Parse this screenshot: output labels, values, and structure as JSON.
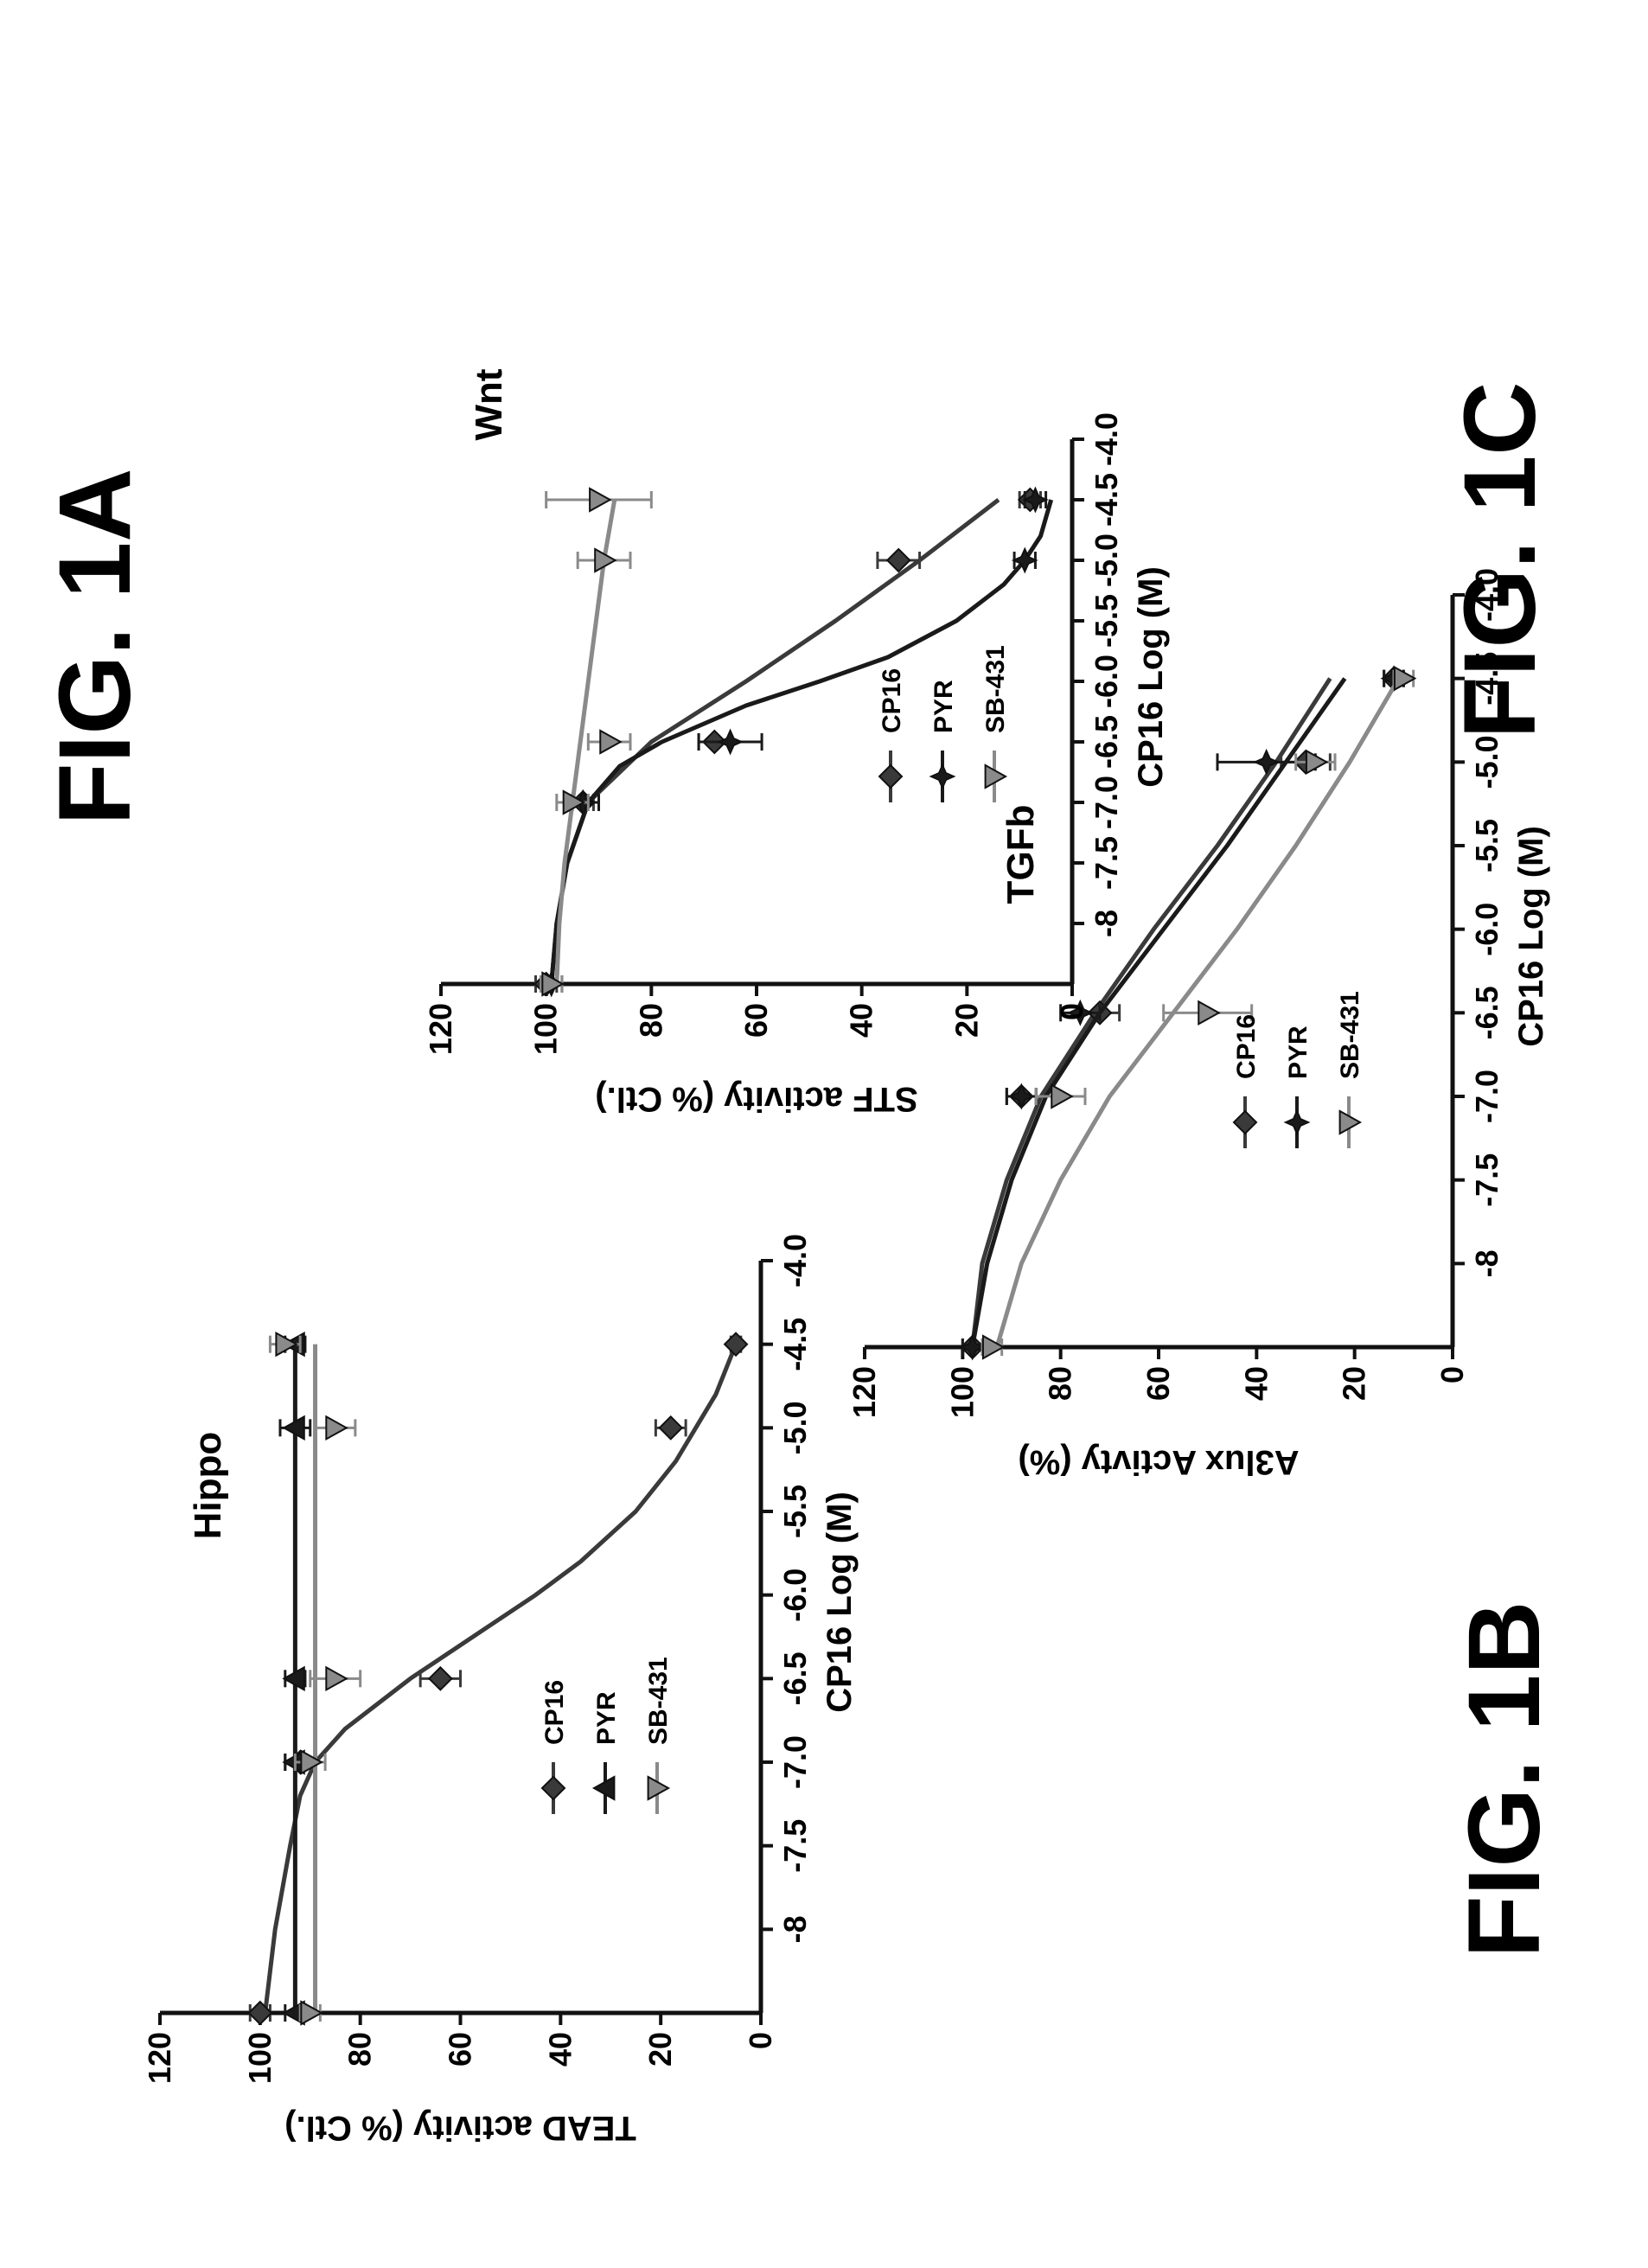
{
  "figures": [
    {
      "label": "FIG. 1A"
    },
    {
      "label": "FIG. 1B"
    },
    {
      "label": "FIG. 1C"
    }
  ],
  "chart_data": [
    {
      "id": "fig1a",
      "type": "line",
      "title": "Hippo",
      "xlabel": "CP16 Log (M)",
      "ylabel": "TEAD activity (% Ctl.)",
      "xlim": [
        -8.5,
        -4.0
      ],
      "ylim": [
        0,
        120
      ],
      "x_ticks": [
        "-8",
        "-7.5",
        "-7.0",
        "-6.5",
        "-6.0",
        "-5.5",
        "-5.0",
        "-4.5",
        "-4.0"
      ],
      "y_ticks": [
        "0",
        "20",
        "40",
        "60",
        "80",
        "100",
        "120"
      ],
      "legend_position": "lower-left",
      "series": [
        {
          "name": "CP16",
          "marker": "diamond",
          "x": [
            -8.5,
            -7.0,
            -6.5,
            -5.0,
            -4.5
          ],
          "y": [
            100,
            92,
            64,
            18,
            5
          ],
          "err": [
            2,
            3,
            4,
            3,
            1
          ],
          "curve_x": [
            -8.5,
            -8.0,
            -7.5,
            -7.2,
            -7.0,
            -6.8,
            -6.5,
            -6.2,
            -6.0,
            -5.8,
            -5.5,
            -5.2,
            -5.0,
            -4.8,
            -4.5
          ],
          "curve_y": [
            99,
            97,
            94,
            92,
            89,
            83,
            70,
            55,
            45,
            36,
            25,
            17,
            13,
            9,
            5
          ]
        },
        {
          "name": "PYR",
          "marker": "triangle",
          "x": [
            -8.5,
            -7.0,
            -6.5,
            -5.0,
            -4.5
          ],
          "y": [
            93,
            93,
            93,
            93,
            93
          ],
          "err": [
            2,
            2,
            2,
            3,
            2
          ],
          "curve_x": [
            -8.5,
            -4.5
          ],
          "curve_y": [
            93,
            93
          ]
        },
        {
          "name": "SB-431",
          "marker": "triangle-down",
          "x": [
            -8.5,
            -7.0,
            -6.5,
            -5.0,
            -4.5
          ],
          "y": [
            90,
            90,
            85,
            85,
            95
          ],
          "err": [
            2,
            3,
            5,
            4,
            3
          ],
          "curve_x": [
            -8.5,
            -4.5
          ],
          "curve_y": [
            89,
            89
          ]
        }
      ]
    },
    {
      "id": "fig1b",
      "type": "line",
      "title": "TGFb",
      "xlabel": "CP16 Log (M)",
      "ylabel": "A3lux Activty (%)",
      "xlim": [
        -8.5,
        -4.0
      ],
      "ylim": [
        0,
        120
      ],
      "x_ticks": [
        "-8",
        "-7.5",
        "-7.0",
        "-6.5",
        "-6.0",
        "-5.5",
        "-5.0",
        "-4.5",
        "-4.0"
      ],
      "y_ticks": [
        "0",
        "20",
        "40",
        "60",
        "80",
        "100",
        "120"
      ],
      "legend_position": "lower-left",
      "series": [
        {
          "name": "CP16",
          "marker": "diamond",
          "x": [
            -8.5,
            -7.0,
            -6.5,
            -5.0,
            -4.5
          ],
          "y": [
            98,
            88,
            72,
            30,
            12
          ],
          "err": [
            2,
            3,
            4,
            5,
            2
          ],
          "curve_x": [
            -8.5,
            -8.0,
            -7.5,
            -7.0,
            -6.5,
            -6.0,
            -5.5,
            -5.0,
            -4.5
          ],
          "curve_y": [
            98,
            96,
            91,
            84,
            73,
            61,
            48,
            36,
            25
          ]
        },
        {
          "name": "PYR",
          "marker": "star",
          "x": [
            -8.5,
            -7.0,
            -6.5,
            -5.0,
            -4.5
          ],
          "y": [
            98,
            88,
            76,
            38,
            12
          ],
          "err": [
            2,
            3,
            4,
            10,
            2
          ],
          "curve_x": [
            -8.5,
            -8.0,
            -7.5,
            -7.0,
            -6.5,
            -6.0,
            -5.5,
            -5.0,
            -4.5
          ],
          "curve_y": [
            98,
            95,
            90,
            83,
            72,
            59,
            46,
            34,
            22
          ]
        },
        {
          "name": "SB-431",
          "marker": "triangle-down",
          "x": [
            -8.5,
            -7.0,
            -6.5,
            -5.0,
            -4.5
          ],
          "y": [
            94,
            80,
            50,
            28,
            10
          ],
          "err": [
            2,
            5,
            9,
            4,
            2
          ],
          "curve_x": [
            -8.5,
            -8.0,
            -7.5,
            -7.0,
            -6.5,
            -6.0,
            -5.5,
            -5.0,
            -4.5
          ],
          "curve_y": [
            93,
            88,
            80,
            70,
            57,
            44,
            32,
            21,
            11
          ]
        }
      ]
    },
    {
      "id": "fig1c",
      "type": "line",
      "title": "Wnt",
      "xlabel": "CP16 Log (M)",
      "ylabel": "STF activity (% Ctl.)",
      "xlim": [
        -8.5,
        -4.0
      ],
      "ylim": [
        0,
        120
      ],
      "x_ticks": [
        "-8",
        "-7.5",
        "-7.0",
        "-6.5",
        "-6.0",
        "-5.5",
        "-5.0",
        "-4.5",
        "-4.0"
      ],
      "y_ticks": [
        "0",
        "20",
        "40",
        "60",
        "80",
        "100",
        "120"
      ],
      "legend_position": "lower-left",
      "series": [
        {
          "name": "CP16",
          "marker": "diamond",
          "x": [
            -8.5,
            -7.0,
            -6.5,
            -5.0,
            -4.5
          ],
          "y": [
            100,
            93,
            68,
            33,
            8
          ],
          "err": [
            2,
            2,
            3,
            4,
            2
          ],
          "curve_x": [
            -8.5,
            -8.0,
            -7.5,
            -7.0,
            -6.5,
            -6.0,
            -5.5,
            -5.0,
            -4.5
          ],
          "curve_y": [
            99,
            98,
            96,
            92,
            80,
            62,
            45,
            29,
            14
          ]
        },
        {
          "name": "PYR",
          "marker": "star",
          "x": [
            -8.5,
            -7.0,
            -6.5,
            -5.0,
            -4.5
          ],
          "y": [
            99,
            93,
            65,
            9,
            7
          ],
          "err": [
            2,
            3,
            6,
            2,
            2
          ],
          "curve_x": [
            -8.5,
            -8.0,
            -7.5,
            -7.0,
            -6.7,
            -6.5,
            -6.2,
            -6.0,
            -5.8,
            -5.5,
            -5.2,
            -5.0,
            -4.8,
            -4.5
          ],
          "curve_y": [
            99,
            98,
            96,
            92,
            86,
            78,
            62,
            48,
            35,
            22,
            13,
            9,
            6,
            4
          ]
        },
        {
          "name": "SB-431",
          "marker": "triangle-down",
          "x": [
            -8.5,
            -7.0,
            -6.5,
            -5.0,
            -4.5
          ],
          "y": [
            99,
            95,
            88,
            89,
            90
          ],
          "err": [
            2,
            3,
            4,
            5,
            10
          ],
          "curve_x": [
            -8.5,
            -8.0,
            -7.5,
            -7.0,
            -6.5,
            -6.0,
            -5.5,
            -5.0,
            -4.5
          ],
          "curve_y": [
            98,
            97.5,
            96.5,
            95,
            93.5,
            92,
            90.5,
            89,
            87
          ]
        }
      ]
    }
  ]
}
